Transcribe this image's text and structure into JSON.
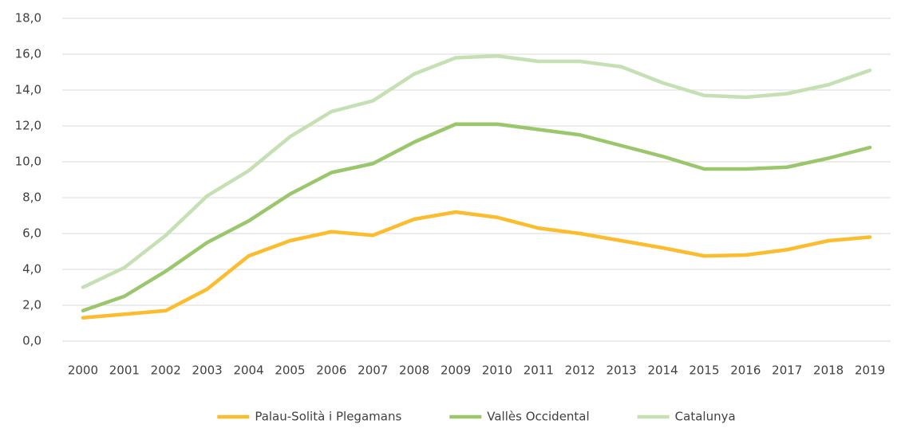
{
  "chart_data": {
    "type": "line",
    "categories": [
      "2000",
      "2001",
      "2002",
      "2003",
      "2004",
      "2005",
      "2006",
      "2007",
      "2008",
      "2009",
      "2010",
      "2011",
      "2012",
      "2013",
      "2014",
      "2015",
      "2016",
      "2017",
      "2018",
      "2019"
    ],
    "series": [
      {
        "name": "Palau-Solità i Plegamans",
        "color": "#fbbc2e",
        "values": [
          1.3,
          1.5,
          1.7,
          2.9,
          4.75,
          5.6,
          6.1,
          5.9,
          6.8,
          7.2,
          6.9,
          6.3,
          6.0,
          5.6,
          5.2,
          4.75,
          4.8,
          5.1,
          5.6,
          5.8
        ]
      },
      {
        "name": "Vallès Occidental",
        "color": "#9bc76c",
        "values": [
          1.7,
          2.5,
          3.9,
          5.5,
          6.7,
          8.2,
          9.4,
          9.9,
          11.1,
          12.1,
          12.1,
          11.8,
          11.5,
          10.9,
          10.3,
          9.6,
          9.6,
          9.7,
          10.2,
          10.8
        ]
      },
      {
        "name": "Catalunya",
        "color": "#c5e0b3",
        "values": [
          3.0,
          4.1,
          5.9,
          8.1,
          9.5,
          11.4,
          12.8,
          13.4,
          14.9,
          15.8,
          15.9,
          15.6,
          15.6,
          15.3,
          14.4,
          13.7,
          13.6,
          13.8,
          14.3,
          15.1
        ]
      }
    ],
    "ylim": [
      0,
      18
    ],
    "yticks": [
      {
        "value": 0,
        "label": "0,0"
      },
      {
        "value": 2,
        "label": "2,0"
      },
      {
        "value": 4,
        "label": "4,0"
      },
      {
        "value": 6,
        "label": "6,0"
      },
      {
        "value": 8,
        "label": "8,0"
      },
      {
        "value": 10,
        "label": "10,0"
      },
      {
        "value": 12,
        "label": "12,0"
      },
      {
        "value": 14,
        "label": "14,0"
      },
      {
        "value": 16,
        "label": "16,0"
      },
      {
        "value": 18,
        "label": "18,0"
      }
    ],
    "grid": true,
    "legend": "bottom"
  }
}
